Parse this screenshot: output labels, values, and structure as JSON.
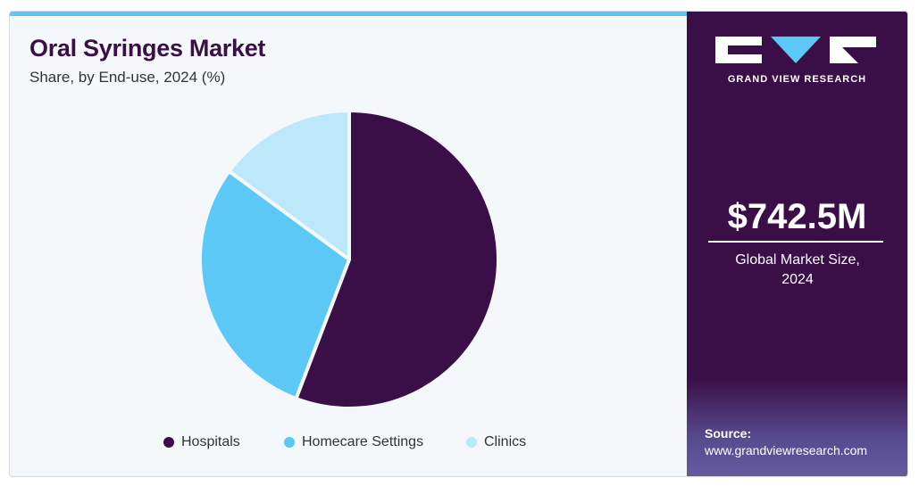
{
  "chart_data": {
    "type": "pie",
    "title": "Oral Syringes Market",
    "subtitle": "Share, by End-use, 2024 (%)",
    "categories": [
      "Hospitals",
      "Homecare Settings",
      "Clinics"
    ],
    "values": [
      55.8,
      29.3,
      14.9
    ],
    "colors": [
      "#3a0f47",
      "#5bc8f5",
      "#bde8fa"
    ]
  },
  "panel": {
    "brand": "GRAND VIEW RESEARCH",
    "market_size": "$742.5M",
    "market_size_label": "Global Market Size, 2024",
    "source_label": "Source:",
    "source_url": "www.grandviewresearch.com"
  }
}
